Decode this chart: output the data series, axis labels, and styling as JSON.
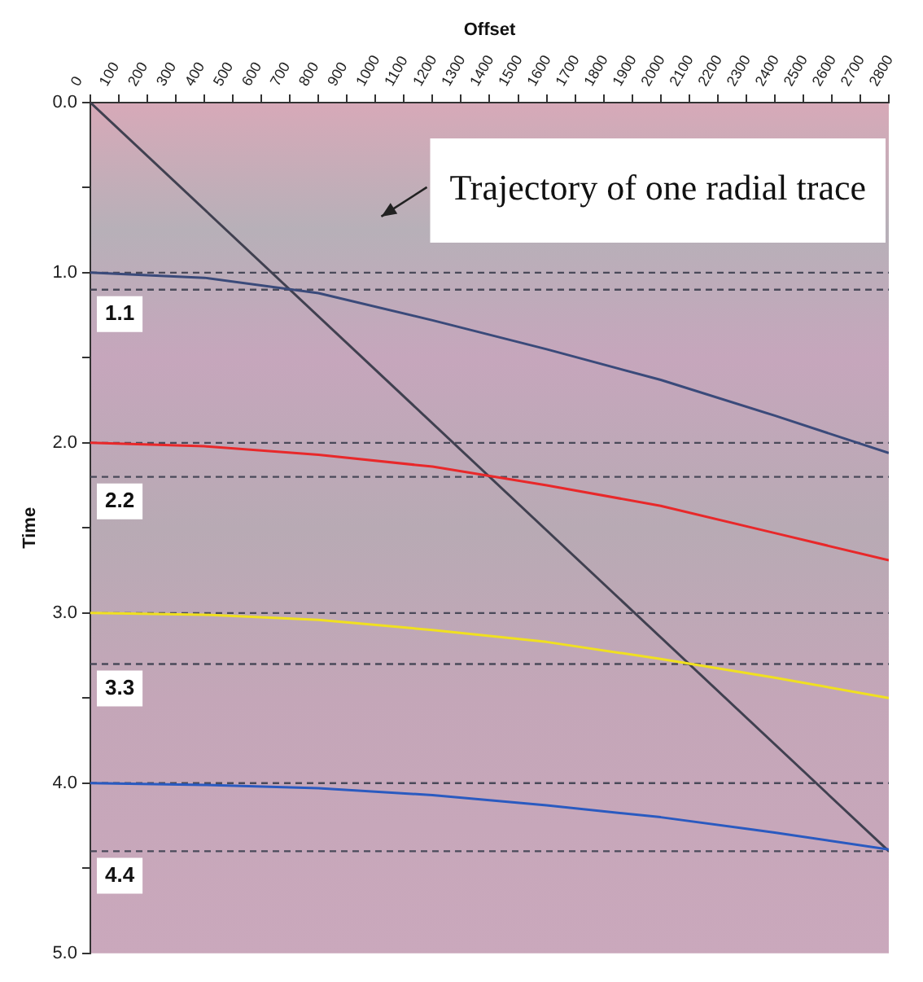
{
  "chart_data": {
    "type": "line",
    "xlabel": "Offset",
    "ylabel": "Time",
    "xlim": [
      0,
      2800
    ],
    "xticks": [
      0,
      100,
      200,
      300,
      400,
      500,
      600,
      700,
      800,
      900,
      1000,
      1100,
      1200,
      1300,
      1400,
      1500,
      1600,
      1700,
      1800,
      1900,
      2000,
      2100,
      2200,
      2300,
      2400,
      2500,
      2600,
      2700,
      2800
    ],
    "ylim": [
      5,
      0
    ],
    "yticks": [
      {
        "value": 0,
        "label": "0.0"
      },
      {
        "value": 0.5,
        "label": null
      },
      {
        "value": 1,
        "label": "1.0"
      },
      {
        "value": 1.5,
        "label": null
      },
      {
        "value": 2,
        "label": "2.0"
      },
      {
        "value": 2.5,
        "label": null
      },
      {
        "value": 3,
        "label": "3.0"
      },
      {
        "value": 3.5,
        "label": null
      },
      {
        "value": 4,
        "label": "4.0"
      },
      {
        "value": 4.5,
        "label": null
      },
      {
        "value": 5,
        "label": "5.0"
      }
    ],
    "x": [
      0,
      400,
      800,
      1200,
      1600,
      2000,
      2400,
      2800
    ],
    "series": [
      {
        "color": "#3a4a7a",
        "values": [
          1.0,
          1.03,
          1.12,
          1.28,
          1.45,
          1.63,
          1.84,
          2.06
        ]
      },
      {
        "color": "#e8282a",
        "values": [
          2.0,
          2.02,
          2.07,
          2.14,
          2.25,
          2.37,
          2.53,
          2.69
        ]
      },
      {
        "color": "#f0e020",
        "values": [
          3.0,
          3.01,
          3.04,
          3.1,
          3.17,
          3.27,
          3.38,
          3.5
        ]
      },
      {
        "color": "#2a5ac0",
        "values": [
          4.0,
          4.01,
          4.03,
          4.07,
          4.13,
          4.2,
          4.29,
          4.39
        ]
      },
      {
        "color": "#404050",
        "x": [
          0,
          2800
        ],
        "values": [
          0,
          4.4
        ]
      }
    ],
    "ref_lines": [
      {
        "axis": "y",
        "value": 1.0,
        "line_style": "dashed",
        "color": "#4a4a5a"
      },
      {
        "axis": "y",
        "value": 1.1,
        "label": "1.1",
        "line_style": "dashed",
        "color": "#4a4a5a"
      },
      {
        "axis": "y",
        "value": 2.0,
        "line_style": "dashed",
        "color": "#4a4a5a"
      },
      {
        "axis": "y",
        "value": 2.2,
        "label": "2.2",
        "line_style": "dashed",
        "color": "#4a4a5a"
      },
      {
        "axis": "y",
        "value": 3.0,
        "line_style": "dashed",
        "color": "#4a4a5a"
      },
      {
        "axis": "y",
        "value": 3.3,
        "label": "3.3",
        "line_style": "dashed",
        "color": "#4a4a5a"
      },
      {
        "axis": "y",
        "value": 4.0,
        "line_style": "dashed",
        "color": "#4a4a5a"
      },
      {
        "axis": "y",
        "value": 4.4,
        "label": "4.4",
        "line_style": "dashed",
        "color": "#4a4a5a"
      }
    ],
    "annotations": [
      "Trajectory of one radial trace"
    ],
    "grid": false,
    "legend": false,
    "marker": "none",
    "line_style": "solid"
  }
}
